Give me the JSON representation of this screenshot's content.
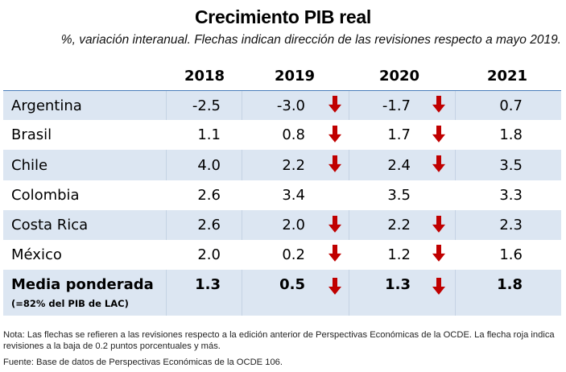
{
  "title": "Crecimiento PIB real",
  "subtitle": "%, variación interanual. Flechas indican dirección de las revisiones respecto a mayo 2019.",
  "chart_data": {
    "type": "table",
    "title": "Crecimiento PIB real",
    "subtitle": "%, variación interanual. Flechas indican dirección de las revisiones respecto a mayo 2019.",
    "columns": [
      "2018",
      "2019",
      "2020",
      "2021"
    ],
    "rows": [
      {
        "name": "Argentina",
        "values": [
          "-2.5",
          "-3.0",
          "-1.7",
          "0.7"
        ],
        "arrows": [
          null,
          "down",
          "down",
          null
        ]
      },
      {
        "name": "Brasil",
        "values": [
          "1.1",
          "0.8",
          "1.7",
          "1.8"
        ],
        "arrows": [
          null,
          "down",
          "down",
          null
        ]
      },
      {
        "name": "Chile",
        "values": [
          "4.0",
          "2.2",
          "2.4",
          "3.5"
        ],
        "arrows": [
          null,
          "down",
          "down",
          null
        ]
      },
      {
        "name": "Colombia",
        "values": [
          "2.6",
          "3.4",
          "3.5",
          "3.3"
        ],
        "arrows": [
          null,
          null,
          null,
          null
        ]
      },
      {
        "name": "Costa Rica",
        "values": [
          "2.6",
          "2.0",
          "2.2",
          "2.3"
        ],
        "arrows": [
          null,
          "down",
          "down",
          null
        ]
      },
      {
        "name": "México",
        "values": [
          "2.0",
          "0.2",
          "1.2",
          "1.6"
        ],
        "arrows": [
          null,
          "down",
          "down",
          null
        ]
      }
    ],
    "summary_row": {
      "name": "Media ponderada",
      "sub": "(=82% del PIB de LAC)",
      "values": [
        "1.3",
        "0.5",
        "1.3",
        "1.8"
      ],
      "arrows": [
        null,
        "down",
        "down",
        null
      ]
    },
    "arrow_legend": {
      "down": "red-down-arrow-icon",
      "color": "#c00000"
    }
  },
  "colors": {
    "shade": "#dce6f2",
    "header_line": "#4a7ebb",
    "arrow": "#c00000"
  },
  "notes": {
    "nota": "Nota: Las flechas se refieren a las revisiones respecto a la edición anterior de Perspectivas Económicas de la OCDE. La flecha roja indica revisiones a la baja de 0.2 puntos porcentuales y más.",
    "fuente": "Fuente: Base de datos de Perspectivas Económicas de la OCDE 106."
  }
}
